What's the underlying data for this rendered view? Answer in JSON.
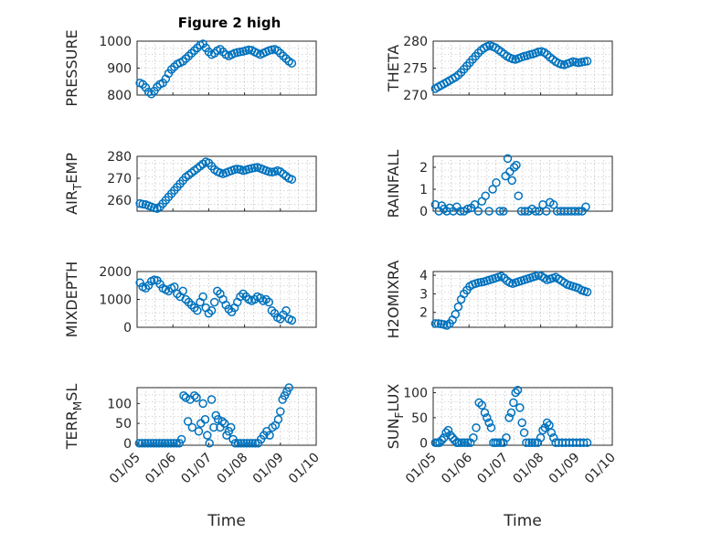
{
  "figure": {
    "title": "Figure 2 high",
    "marker_color": "#0072bd"
  },
  "chart_data": [
    {
      "type": "scatter",
      "id": "pressure",
      "title": "Figure 2 high",
      "ylabel": "PRESSURE",
      "xlabel": "",
      "xlim": [
        "01/05",
        "01/10"
      ],
      "ylim": [
        800,
        1000
      ],
      "yticks": [
        800,
        900,
        1000
      ],
      "xticks": [
        "01/05",
        "01/06",
        "01/07",
        "01/08",
        "01/09",
        "01/10"
      ],
      "grid": true,
      "x": [
        0.08,
        0.16,
        0.24,
        0.32,
        0.4,
        0.48,
        0.56,
        0.64,
        0.72,
        0.8,
        0.88,
        0.96,
        1.04,
        1.12,
        1.2,
        1.28,
        1.36,
        1.44,
        1.52,
        1.6,
        1.68,
        1.76,
        1.84,
        1.92,
        2.0,
        2.08,
        2.16,
        2.24,
        2.32,
        2.4,
        2.48,
        2.56,
        2.64,
        2.72,
        2.8,
        2.88,
        2.96,
        3.04,
        3.12,
        3.2,
        3.28,
        3.36,
        3.44,
        3.52,
        3.6,
        3.68,
        3.76,
        3.84,
        3.92,
        4.0,
        4.08,
        4.16,
        4.24,
        4.32
      ],
      "y": [
        845,
        840,
        828,
        812,
        804,
        815,
        830,
        840,
        845,
        860,
        880,
        895,
        905,
        915,
        920,
        925,
        935,
        945,
        955,
        965,
        975,
        985,
        990,
        975,
        960,
        950,
        955,
        965,
        970,
        960,
        950,
        945,
        950,
        955,
        958,
        960,
        962,
        965,
        968,
        966,
        960,
        955,
        950,
        955,
        960,
        965,
        968,
        970,
        965,
        955,
        945,
        935,
        925,
        918
      ]
    },
    {
      "type": "scatter",
      "id": "theta",
      "ylabel": "THETA",
      "xlabel": "",
      "xlim": [
        "01/05",
        "01/10"
      ],
      "ylim": [
        270,
        280
      ],
      "yticks": [
        270,
        275,
        280
      ],
      "xticks": [
        "01/05",
        "01/06",
        "01/07",
        "01/08",
        "01/09",
        "01/10"
      ],
      "grid": true,
      "x": [
        0.06,
        0.14,
        0.22,
        0.3,
        0.38,
        0.46,
        0.54,
        0.62,
        0.7,
        0.78,
        0.86,
        0.94,
        1.02,
        1.1,
        1.18,
        1.26,
        1.34,
        1.42,
        1.5,
        1.58,
        1.66,
        1.74,
        1.82,
        1.9,
        1.98,
        2.06,
        2.14,
        2.22,
        2.3,
        2.38,
        2.46,
        2.54,
        2.62,
        2.7,
        2.78,
        2.86,
        2.94,
        3.02,
        3.1,
        3.18,
        3.26,
        3.34,
        3.42,
        3.5,
        3.58,
        3.66,
        3.74,
        3.82,
        3.9,
        3.98,
        4.06,
        4.14,
        4.22,
        4.3
      ],
      "y": [
        271.2,
        271.5,
        271.8,
        272.1,
        272.4,
        272.7,
        273.0,
        273.3,
        273.7,
        274.2,
        274.8,
        275.4,
        276.0,
        276.6,
        277.2,
        277.8,
        278.3,
        278.7,
        279.0,
        279.2,
        279.0,
        278.8,
        278.4,
        278.0,
        277.6,
        277.2,
        276.9,
        276.7,
        276.6,
        276.8,
        277.0,
        277.2,
        277.3,
        277.5,
        277.6,
        277.8,
        278.0,
        278.1,
        277.9,
        277.5,
        277.0,
        276.6,
        276.2,
        275.9,
        275.7,
        275.6,
        275.8,
        276.0,
        276.2,
        276.1,
        276.0,
        276.1,
        276.2,
        276.3
      ]
    },
    {
      "type": "scatter",
      "id": "airtemp",
      "ylabel": "AIR",
      "ylabel_sub": "T",
      "ylabel_rest": "EMP",
      "xlabel": "",
      "xlim": [
        "01/05",
        "01/10"
      ],
      "ylim": [
        255,
        280
      ],
      "yticks": [
        260,
        270,
        280
      ],
      "xticks": [
        "01/05",
        "01/06",
        "01/07",
        "01/08",
        "01/09",
        "01/10"
      ],
      "grid": true,
      "x": [
        0.08,
        0.16,
        0.24,
        0.32,
        0.4,
        0.48,
        0.56,
        0.64,
        0.72,
        0.8,
        0.88,
        0.96,
        1.04,
        1.12,
        1.2,
        1.28,
        1.36,
        1.44,
        1.52,
        1.6,
        1.68,
        1.76,
        1.84,
        1.92,
        2.0,
        2.08,
        2.16,
        2.24,
        2.32,
        2.4,
        2.48,
        2.56,
        2.64,
        2.72,
        2.8,
        2.88,
        2.96,
        3.04,
        3.12,
        3.2,
        3.28,
        3.36,
        3.44,
        3.52,
        3.6,
        3.68,
        3.76,
        3.84,
        3.92,
        4.0,
        4.08,
        4.16,
        4.24,
        4.32
      ],
      "y": [
        258.5,
        258.2,
        258.0,
        257.5,
        257.0,
        256.5,
        256.2,
        257.0,
        258.5,
        260.0,
        261.5,
        263.0,
        264.5,
        266.0,
        267.5,
        269.0,
        270.5,
        271.5,
        272.5,
        273.5,
        274.5,
        275.5,
        276.5,
        277.5,
        277.0,
        275.5,
        274.0,
        273.0,
        272.5,
        272.0,
        272.5,
        273.0,
        273.5,
        274.0,
        274.2,
        274.0,
        273.5,
        273.8,
        274.2,
        274.5,
        274.8,
        275.0,
        274.5,
        274.0,
        273.5,
        273.0,
        272.8,
        273.0,
        273.5,
        273.0,
        272.0,
        271.0,
        270.0,
        269.5
      ]
    },
    {
      "type": "scatter",
      "id": "rainfall",
      "ylabel": "RAINFALL",
      "xlabel": "",
      "xlim": [
        "01/05",
        "01/10"
      ],
      "ylim": [
        0,
        2.5
      ],
      "yticks": [
        0,
        1,
        2
      ],
      "xticks": [
        "01/05",
        "01/06",
        "01/07",
        "01/08",
        "01/09",
        "01/10"
      ],
      "grid": true,
      "x": [
        0.06,
        0.16,
        0.24,
        0.3,
        0.38,
        0.46,
        0.56,
        0.66,
        0.76,
        0.86,
        0.96,
        1.06,
        1.16,
        1.26,
        1.36,
        1.46,
        1.56,
        1.66,
        1.76,
        1.86,
        1.96,
        2.02,
        2.08,
        2.14,
        2.2,
        2.26,
        2.32,
        2.38,
        2.46,
        2.56,
        2.66,
        2.76,
        2.86,
        2.96,
        3.06,
        3.16,
        3.26,
        3.36,
        3.46,
        3.56,
        3.66,
        3.76,
        3.86,
        3.96,
        4.06,
        4.16,
        4.26
      ],
      "y": [
        0.3,
        0.0,
        0.25,
        0.1,
        0.0,
        0.15,
        0.0,
        0.2,
        0.0,
        0.0,
        0.1,
        0.15,
        0.3,
        0.0,
        0.45,
        0.7,
        0.0,
        1.0,
        1.3,
        0.0,
        0.0,
        1.6,
        2.4,
        1.8,
        1.4,
        2.0,
        2.1,
        0.7,
        0.0,
        0.0,
        0.0,
        0.1,
        0.0,
        0.0,
        0.3,
        0.0,
        0.4,
        0.3,
        0.0,
        0.0,
        0.0,
        0.0,
        0.0,
        0.0,
        0.0,
        0.0,
        0.2
      ]
    },
    {
      "type": "scatter",
      "id": "mixdepth",
      "ylabel": "MIXDEPTH",
      "xlabel": "",
      "xlim": [
        "01/05",
        "01/10"
      ],
      "ylim": [
        0,
        2000
      ],
      "yticks": [
        0,
        1000,
        2000
      ],
      "xticks": [
        "01/05",
        "01/06",
        "01/07",
        "01/08",
        "01/09",
        "01/10"
      ],
      "grid": true,
      "x": [
        0.08,
        0.16,
        0.24,
        0.32,
        0.4,
        0.48,
        0.56,
        0.64,
        0.72,
        0.8,
        0.88,
        0.96,
        1.04,
        1.12,
        1.2,
        1.28,
        1.36,
        1.44,
        1.52,
        1.6,
        1.68,
        1.76,
        1.84,
        1.92,
        2.0,
        2.08,
        2.16,
        2.24,
        2.32,
        2.4,
        2.48,
        2.56,
        2.64,
        2.72,
        2.8,
        2.88,
        2.96,
        3.04,
        3.12,
        3.2,
        3.28,
        3.36,
        3.44,
        3.52,
        3.6,
        3.68,
        3.76,
        3.84,
        3.92,
        4.0,
        4.08,
        4.16,
        4.24,
        4.32
      ],
      "y": [
        1600,
        1450,
        1400,
        1500,
        1650,
        1700,
        1680,
        1550,
        1400,
        1350,
        1300,
        1400,
        1450,
        1200,
        1100,
        1300,
        1000,
        900,
        800,
        700,
        600,
        900,
        1100,
        700,
        500,
        600,
        900,
        1300,
        1200,
        1000,
        800,
        650,
        550,
        700,
        900,
        1100,
        1200,
        1100,
        1000,
        950,
        1000,
        1100,
        1050,
        950,
        1000,
        900,
        600,
        500,
        350,
        300,
        450,
        600,
        300,
        250
      ]
    },
    {
      "type": "scatter",
      "id": "h2omixra",
      "ylabel": "H2OMIXRA",
      "xlabel": "",
      "xlim": [
        "01/05",
        "01/10"
      ],
      "ylim": [
        1.2,
        4.2
      ],
      "yticks": [
        2,
        3,
        4
      ],
      "xticks": [
        "01/05",
        "01/06",
        "01/07",
        "01/08",
        "01/09",
        "01/10"
      ],
      "grid": true,
      "x": [
        0.06,
        0.14,
        0.22,
        0.3,
        0.38,
        0.46,
        0.54,
        0.62,
        0.7,
        0.78,
        0.86,
        0.94,
        1.02,
        1.1,
        1.18,
        1.26,
        1.34,
        1.42,
        1.5,
        1.58,
        1.66,
        1.74,
        1.82,
        1.9,
        1.98,
        2.06,
        2.14,
        2.22,
        2.3,
        2.38,
        2.46,
        2.54,
        2.62,
        2.7,
        2.78,
        2.86,
        2.94,
        3.02,
        3.1,
        3.18,
        3.26,
        3.34,
        3.42,
        3.5,
        3.58,
        3.66,
        3.74,
        3.82,
        3.9,
        3.98,
        4.06,
        4.14,
        4.22,
        4.3
      ],
      "y": [
        1.4,
        1.4,
        1.38,
        1.35,
        1.3,
        1.4,
        1.6,
        1.9,
        2.3,
        2.7,
        3.0,
        3.2,
        3.4,
        3.5,
        3.55,
        3.6,
        3.62,
        3.65,
        3.7,
        3.75,
        3.8,
        3.85,
        3.9,
        3.95,
        3.85,
        3.7,
        3.6,
        3.55,
        3.6,
        3.65,
        3.7,
        3.75,
        3.8,
        3.85,
        3.9,
        3.95,
        4.0,
        3.95,
        3.85,
        3.75,
        3.8,
        3.85,
        3.9,
        3.8,
        3.7,
        3.6,
        3.5,
        3.45,
        3.4,
        3.35,
        3.3,
        3.2,
        3.15,
        3.1
      ]
    },
    {
      "type": "scatter",
      "id": "terrmsl",
      "ylabel": "TERR",
      "ylabel_sub": "M",
      "ylabel_rest": "SL",
      "xlabel": "Time",
      "xlim": [
        "01/05",
        "01/10"
      ],
      "ylim": [
        -5,
        140
      ],
      "yticks": [
        0,
        50,
        100
      ],
      "xticks": [
        "01/05",
        "01/06",
        "01/07",
        "01/08",
        "01/09",
        "01/10"
      ],
      "grid": true,
      "x": [
        0.06,
        0.14,
        0.22,
        0.3,
        0.38,
        0.46,
        0.54,
        0.62,
        0.7,
        0.78,
        0.86,
        0.94,
        1.02,
        1.1,
        1.18,
        1.24,
        1.3,
        1.36,
        1.42,
        1.48,
        1.54,
        1.6,
        1.66,
        1.72,
        1.78,
        1.84,
        1.9,
        1.96,
        2.02,
        2.08,
        2.14,
        2.2,
        2.26,
        2.32,
        2.38,
        2.44,
        2.5,
        2.56,
        2.62,
        2.68,
        2.74,
        2.82,
        2.9,
        2.98,
        3.06,
        3.14,
        3.22,
        3.3,
        3.38,
        3.46,
        3.54,
        3.62,
        3.7,
        3.78,
        3.86,
        3.94,
        4.0,
        4.06,
        4.12,
        4.18,
        4.24
      ],
      "y": [
        0,
        0,
        0,
        0,
        0,
        0,
        0,
        0,
        0,
        0,
        0,
        0,
        0,
        0,
        0,
        10,
        120,
        115,
        55,
        110,
        40,
        120,
        115,
        30,
        50,
        100,
        60,
        20,
        0,
        110,
        40,
        70,
        60,
        40,
        55,
        50,
        20,
        30,
        40,
        10,
        0,
        0,
        0,
        0,
        0,
        0,
        0,
        0,
        0,
        10,
        20,
        30,
        20,
        40,
        45,
        60,
        80,
        110,
        120,
        130,
        140
      ]
    },
    {
      "type": "scatter",
      "id": "sunflux",
      "ylabel": "SUN",
      "ylabel_sub": "F",
      "ylabel_rest": "LUX",
      "xlabel": "Time",
      "xlim": [
        "01/05",
        "01/10"
      ],
      "ylim": [
        -5,
        110
      ],
      "yticks": [
        0,
        50,
        100
      ],
      "xticks": [
        "01/05",
        "01/06",
        "01/07",
        "01/08",
        "01/09",
        "01/10"
      ],
      "grid": true,
      "x": [
        0.06,
        0.12,
        0.18,
        0.24,
        0.3,
        0.36,
        0.42,
        0.48,
        0.54,
        0.6,
        0.66,
        0.72,
        0.8,
        0.88,
        0.96,
        1.04,
        1.12,
        1.2,
        1.28,
        1.36,
        1.44,
        1.5,
        1.56,
        1.62,
        1.68,
        1.74,
        1.8,
        1.88,
        1.96,
        2.04,
        2.12,
        2.18,
        2.24,
        2.3,
        2.36,
        2.42,
        2.48,
        2.54,
        2.6,
        2.68,
        2.76,
        2.84,
        2.92,
        3.0,
        3.06,
        3.12,
        3.18,
        3.24,
        3.3,
        3.36,
        3.42,
        3.5,
        3.6,
        3.7,
        3.8,
        3.9,
        4.0,
        4.1,
        4.2,
        4.3
      ],
      "y": [
        0,
        0,
        0,
        5,
        10,
        20,
        25,
        15,
        10,
        5,
        0,
        0,
        0,
        0,
        0,
        0,
        10,
        30,
        80,
        75,
        60,
        50,
        40,
        30,
        0,
        0,
        0,
        0,
        0,
        10,
        50,
        60,
        80,
        100,
        105,
        70,
        40,
        20,
        0,
        0,
        0,
        0,
        0,
        10,
        25,
        30,
        40,
        35,
        20,
        10,
        0,
        0,
        0,
        0,
        0,
        0,
        0,
        0,
        0,
        0
      ]
    }
  ]
}
